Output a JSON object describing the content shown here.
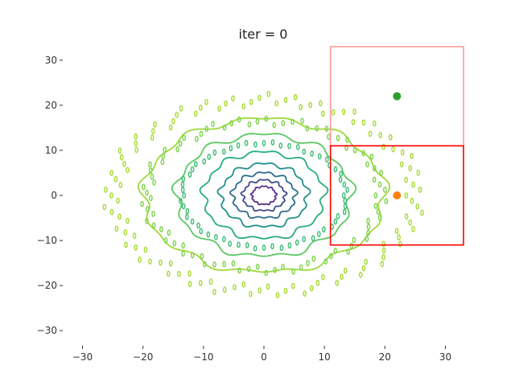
{
  "chart_data": {
    "type": "contour",
    "title": "iter = 0",
    "xlabel": "",
    "ylabel": "",
    "xlim": [
      -33,
      33
    ],
    "ylim": [
      -33,
      33
    ],
    "xticks": [
      -30,
      -20,
      -10,
      0,
      10,
      20,
      30
    ],
    "yticks": [
      30,
      20,
      10,
      0,
      -10,
      -20,
      -30
    ],
    "xtick_labels": [
      "−30",
      "−20",
      "−10",
      "0",
      "10",
      "20",
      "30"
    ],
    "ytick_labels": [
      "30",
      "20",
      "10",
      "0",
      "−10",
      "−20",
      "−30"
    ],
    "grid": false,
    "axis_frame": false,
    "contour_rings": [
      {
        "radius_x": 2.0,
        "radius_y": 2.0,
        "wobble": 0.1,
        "color": "#5a2f86"
      },
      {
        "radius_x": 3.5,
        "radius_y": 3.4,
        "wobble": 0.1,
        "color": "#3f4a8a"
      },
      {
        "radius_x": 5.2,
        "radius_y": 5.0,
        "wobble": 0.09,
        "color": "#2e6c8e"
      },
      {
        "radius_x": 7.2,
        "radius_y": 7.0,
        "wobble": 0.08,
        "color": "#21908d"
      },
      {
        "radius_x": 10.0,
        "radius_y": 9.6,
        "wobble": 0.07,
        "color": "#27ad81"
      },
      {
        "radius_x": 14.5,
        "radius_y": 13.5,
        "wobble": 0.06,
        "color": "#5cc863"
      },
      {
        "radius_x": 20.0,
        "radius_y": 17.0,
        "wobble": 0.05,
        "color": "#9ed93a"
      }
    ],
    "contour_dot_fields": [
      {
        "r_in": 11.8,
        "r_out": 12.6,
        "color": "#3dbc74"
      },
      {
        "r_in": 16.5,
        "r_out": 18.5,
        "color": "#7fd34e"
      },
      {
        "r_in": 21.0,
        "r_out": 24.0,
        "color": "#a8db34"
      }
    ],
    "points": [
      {
        "x": 22,
        "y": 22,
        "color": "#2ca02c"
      },
      {
        "x": 22,
        "y": 0,
        "color": "#ff7f0e"
      }
    ],
    "rectangles": [
      {
        "x0": 11,
        "x1": 33,
        "y0": 11,
        "y1": 33,
        "color": "#ff9999"
      },
      {
        "x0": 11,
        "x1": 33,
        "y0": -11,
        "y1": 11,
        "color": "#ff0000"
      }
    ]
  }
}
